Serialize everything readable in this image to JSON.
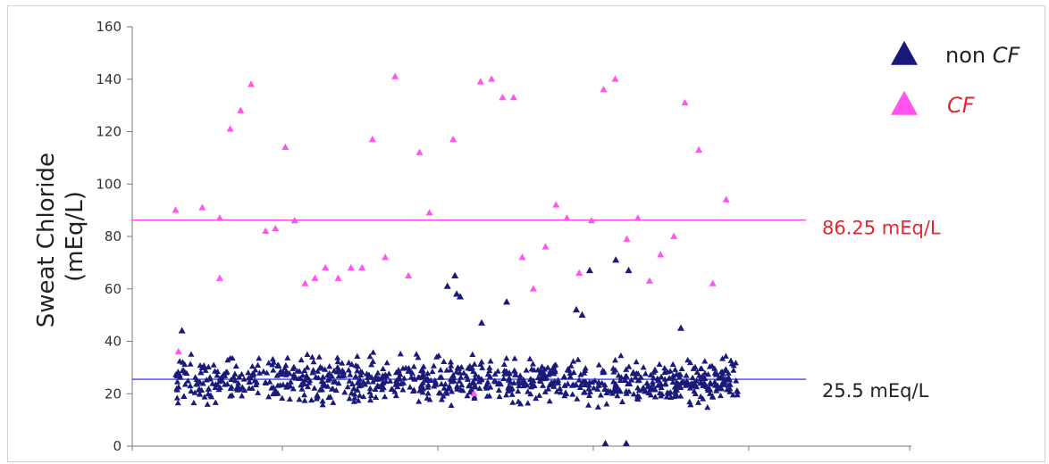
{
  "chart_data": {
    "type": "scatter",
    "title": "",
    "xlabel": "",
    "ylabel_line1": "Sweat Chloride",
    "ylabel_line2": "(mEq/L)",
    "ylim": [
      0,
      160
    ],
    "yticks": [
      "0",
      "20",
      "40",
      "60",
      "80",
      "100",
      "120",
      "140",
      "160"
    ],
    "xlim": [
      0,
      1000
    ],
    "grid": false,
    "legend_position": "top-right",
    "marker": "triangle",
    "series": [
      {
        "name": "non CF",
        "color": "#1a1a7a",
        "cluster": {
          "n": 900,
          "x_range": [
            10,
            980
          ],
          "y_mean": 25,
          "y_range": [
            10,
            50
          ]
        },
        "points": [
          [
            491,
            65
          ],
          [
            478,
            61
          ],
          [
            494,
            58
          ],
          [
            500,
            57
          ],
          [
            580,
            55
          ],
          [
            723,
            67
          ],
          [
            790,
            67
          ],
          [
            768,
            71
          ],
          [
            537,
            47
          ],
          [
            700,
            52
          ],
          [
            710,
            50
          ],
          [
            880,
            45
          ],
          [
            21,
            44
          ],
          [
            750,
            1
          ],
          [
            786,
            1
          ]
        ]
      },
      {
        "name": "CF",
        "color": "#ff55ee",
        "points": [
          [
            10,
            90
          ],
          [
            56,
            91
          ],
          [
            86,
            64
          ],
          [
            86,
            87
          ],
          [
            104,
            121
          ],
          [
            122,
            128
          ],
          [
            140,
            138
          ],
          [
            165,
            82
          ],
          [
            182,
            83
          ],
          [
            199,
            114
          ],
          [
            215,
            86
          ],
          [
            233,
            62
          ],
          [
            250,
            64
          ],
          [
            268,
            68
          ],
          [
            290,
            64
          ],
          [
            312,
            68
          ],
          [
            331,
            68
          ],
          [
            349,
            117
          ],
          [
            371,
            72
          ],
          [
            388,
            141
          ],
          [
            411,
            65
          ],
          [
            430,
            112
          ],
          [
            447,
            89
          ],
          [
            488,
            117
          ],
          [
            535,
            139
          ],
          [
            554,
            140
          ],
          [
            573,
            133
          ],
          [
            592,
            133
          ],
          [
            607,
            72
          ],
          [
            626,
            60
          ],
          [
            647,
            76
          ],
          [
            665,
            92
          ],
          [
            684,
            87
          ],
          [
            705,
            66
          ],
          [
            726,
            86
          ],
          [
            747,
            136
          ],
          [
            767,
            140
          ],
          [
            787,
            79
          ],
          [
            806,
            87
          ],
          [
            826,
            63
          ],
          [
            845,
            73
          ],
          [
            868,
            80
          ],
          [
            887,
            131
          ],
          [
            911,
            113
          ],
          [
            935,
            62
          ],
          [
            958,
            94
          ],
          [
            15,
            36
          ],
          [
            524,
            20
          ]
        ]
      }
    ],
    "reference_lines": [
      {
        "label": "86.25 mEq/L",
        "value": 86.25,
        "color": "#ff44ee",
        "text_color": "#e8242c"
      },
      {
        "label": "25.5 mEq/L",
        "value": 25.5,
        "color": "#4040ff",
        "text_color": "#222222"
      }
    ],
    "legend": [
      {
        "label_prefix": "non ",
        "label_italic": "CF",
        "color": "#1a1a7a",
        "text_color": "#222222"
      },
      {
        "label_prefix": "",
        "label_italic": "CF",
        "color": "#ff55ee",
        "text_color": "#e8242c"
      }
    ]
  }
}
